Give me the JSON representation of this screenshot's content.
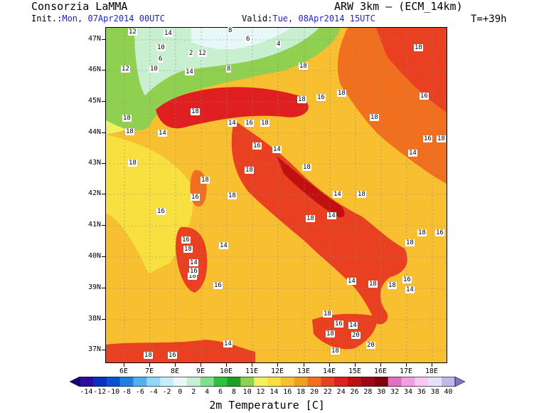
{
  "header": {
    "brand": "Consorzia LaMMA",
    "init_label": "Init.:",
    "init_value": "Mon, 07Apr2014 00UTC",
    "valid_label": "Valid:",
    "valid_value": "Tue, 08Apr2014 15UTC",
    "model": "ARW 3km – (ECM_14km)",
    "step": "T=+39h"
  },
  "map": {
    "lat_labels": [
      "47N",
      "46N",
      "45N",
      "44N",
      "43N",
      "42N",
      "41N",
      "40N",
      "39N",
      "38N",
      "37N"
    ],
    "lon_labels": [
      "6E",
      "7E",
      "8E",
      "9E",
      "10E",
      "11E",
      "12E",
      "13E",
      "14E",
      "15E",
      "16E",
      "17E",
      "18E"
    ],
    "point_values": [
      "12",
      "14",
      "12",
      "8",
      "10",
      "6",
      "2",
      "6",
      "4",
      "12",
      "14",
      "8",
      "10",
      "18",
      "18",
      "16",
      "18",
      "18",
      "18",
      "14",
      "16",
      "18",
      "18",
      "18",
      "16",
      "18",
      "16",
      "18",
      "14",
      "16",
      "14",
      "18",
      "18",
      "18",
      "16",
      "18",
      "14",
      "18",
      "16",
      "18",
      "14",
      "18",
      "16",
      "18",
      "16",
      "18",
      "14",
      "18",
      "16",
      "14",
      "18",
      "18",
      "16",
      "14",
      "20",
      "14",
      "18",
      "20",
      "14",
      "18",
      "16",
      "18",
      "14",
      "16",
      "18",
      "14",
      "18",
      "16"
    ]
  },
  "colorbar": {
    "ticks": [
      "-14",
      "-12",
      "-10",
      "-8",
      "-6",
      "-4",
      "-2",
      "0",
      "2",
      "4",
      "6",
      "8",
      "10",
      "12",
      "14",
      "16",
      "18",
      "20",
      "22",
      "24",
      "26",
      "28",
      "30",
      "32",
      "34",
      "36",
      "38",
      "40"
    ],
    "colors": [
      "#1a0070",
      "#2a10a0",
      "#0a30c0",
      "#0a50d0",
      "#2080e0",
      "#50b0f0",
      "#90d8f8",
      "#c8ecf8",
      "#e8f8f8",
      "#c8f0d0",
      "#80e090",
      "#30c040",
      "#20a020",
      "#90d050",
      "#f0f060",
      "#f8e040",
      "#f8c030",
      "#f0a020",
      "#f07020",
      "#e84020",
      "#e02020",
      "#c01010",
      "#a00818",
      "#800010",
      "#e070c0",
      "#f0a0e0",
      "#f8c8f0",
      "#e8e0f8",
      "#c0b8e8",
      "#8070c8"
    ],
    "title": "2m Temperature [C]"
  }
}
